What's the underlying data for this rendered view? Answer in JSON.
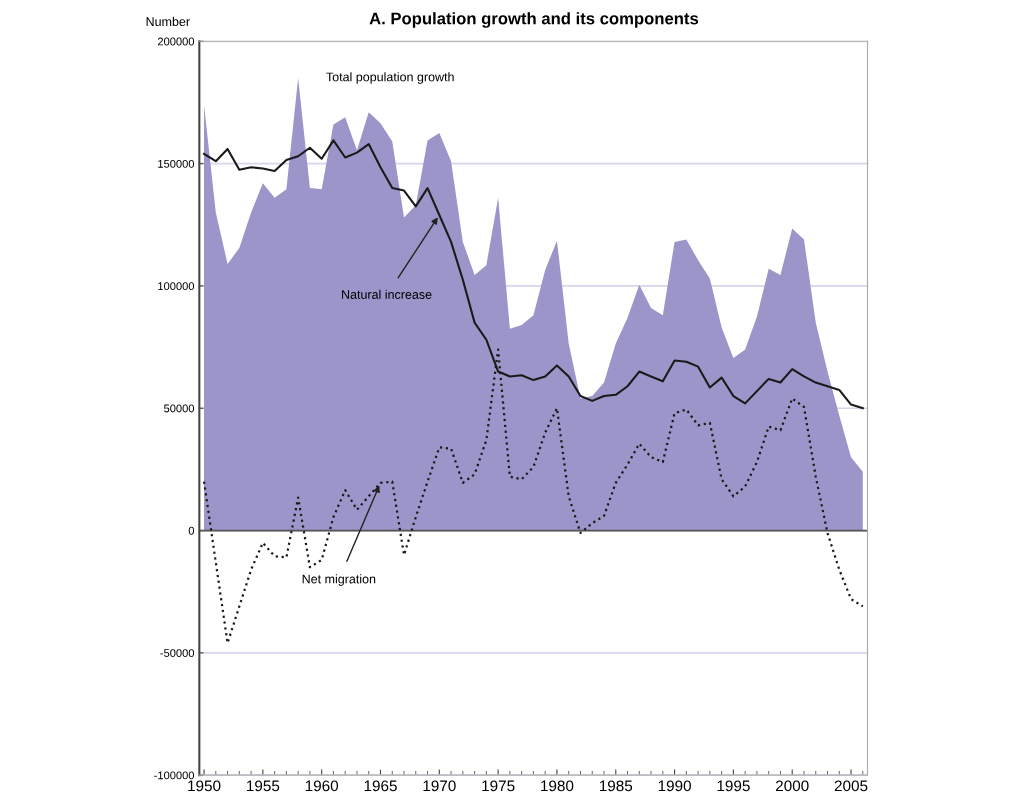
{
  "chart_data": {
    "type": "area",
    "title": "A. Population growth and its components",
    "ylabel": "Number",
    "x": [
      1950,
      1951,
      1952,
      1953,
      1954,
      1955,
      1956,
      1957,
      1958,
      1959,
      1960,
      1961,
      1962,
      1963,
      1964,
      1965,
      1966,
      1967,
      1968,
      1969,
      1970,
      1971,
      1972,
      1973,
      1974,
      1975,
      1976,
      1977,
      1978,
      1979,
      1980,
      1981,
      1982,
      1983,
      1984,
      1985,
      1986,
      1987,
      1988,
      1989,
      1990,
      1991,
      1992,
      1993,
      1994,
      1995,
      1996,
      1997,
      1998,
      1999,
      2000,
      2001,
      2002,
      2003,
      2004,
      2005,
      2006
    ],
    "series": [
      {
        "name": "Total population growth",
        "color": "#9b95c9",
        "values": [
          174000,
          130000,
          109000,
          115500,
          130000,
          142000,
          136000,
          139500,
          185000,
          140000,
          139500,
          166000,
          169000,
          155500,
          171000,
          166500,
          159000,
          128000,
          133000,
          159500,
          162500,
          151000,
          118000,
          104500,
          108500,
          136000,
          82500,
          84000,
          88000,
          106500,
          118500,
          76500,
          54000,
          55000,
          60500,
          76500,
          87000,
          100500,
          91000,
          88000,
          118000,
          119000,
          110500,
          103000,
          83000,
          70500,
          74000,
          87500,
          107000,
          104500,
          123500,
          119000,
          85000,
          65000,
          47000,
          30000,
          24000
        ]
      },
      {
        "name": "Natural increase",
        "type": "line",
        "line_style": "solid",
        "color": "#1a1a1a",
        "values": [
          154000,
          151000,
          156000,
          147500,
          148500,
          148000,
          147000,
          151500,
          153000,
          156500,
          152000,
          159500,
          152500,
          154500,
          158000,
          148500,
          140000,
          139000,
          132500,
          140000,
          129000,
          118000,
          102500,
          85000,
          78000,
          65000,
          63000,
          63500,
          61500,
          63000,
          67500,
          63000,
          55000,
          53000,
          55000,
          55500,
          59000,
          65000,
          63000,
          61000,
          69500,
          69000,
          67000,
          58500,
          62500,
          55000,
          52000,
          57000,
          62000,
          60500,
          66000,
          63000,
          60500,
          59000,
          57500,
          51500,
          50000
        ]
      },
      {
        "name": "Net migration",
        "type": "line",
        "line_style": "dotted",
        "color": "#1a1a1a",
        "values": [
          20000,
          -13000,
          -46000,
          -31000,
          -16000,
          -5000,
          -10500,
          -11000,
          13500,
          -15000,
          -12000,
          5500,
          16500,
          8500,
          14000,
          19500,
          20000,
          -10000,
          5500,
          20000,
          34000,
          33500,
          19500,
          23000,
          37000,
          74000,
          22000,
          21000,
          26000,
          40000,
          50000,
          14000,
          -1000,
          3000,
          6000,
          19500,
          27000,
          35500,
          30000,
          28000,
          48000,
          49500,
          43000,
          44000,
          21000,
          14000,
          18000,
          28000,
          42500,
          41000,
          54000,
          50500,
          22000,
          -1000,
          -16000,
          -28000,
          -31000
        ]
      }
    ],
    "xlim": [
      1949.6,
      2006.4
    ],
    "xticks": [
      1950,
      1955,
      1960,
      1965,
      1970,
      1975,
      1980,
      1985,
      1990,
      1995,
      2000,
      2005
    ],
    "ylim": [
      -100000,
      200000
    ],
    "yticks": [
      -100000,
      -50000,
      0,
      50000,
      100000,
      150000,
      200000
    ],
    "grid": "y",
    "legend": false,
    "marker": "none",
    "ref_lines": [
      {
        "axis": "y",
        "value": 0,
        "color": "#555555"
      }
    ]
  }
}
